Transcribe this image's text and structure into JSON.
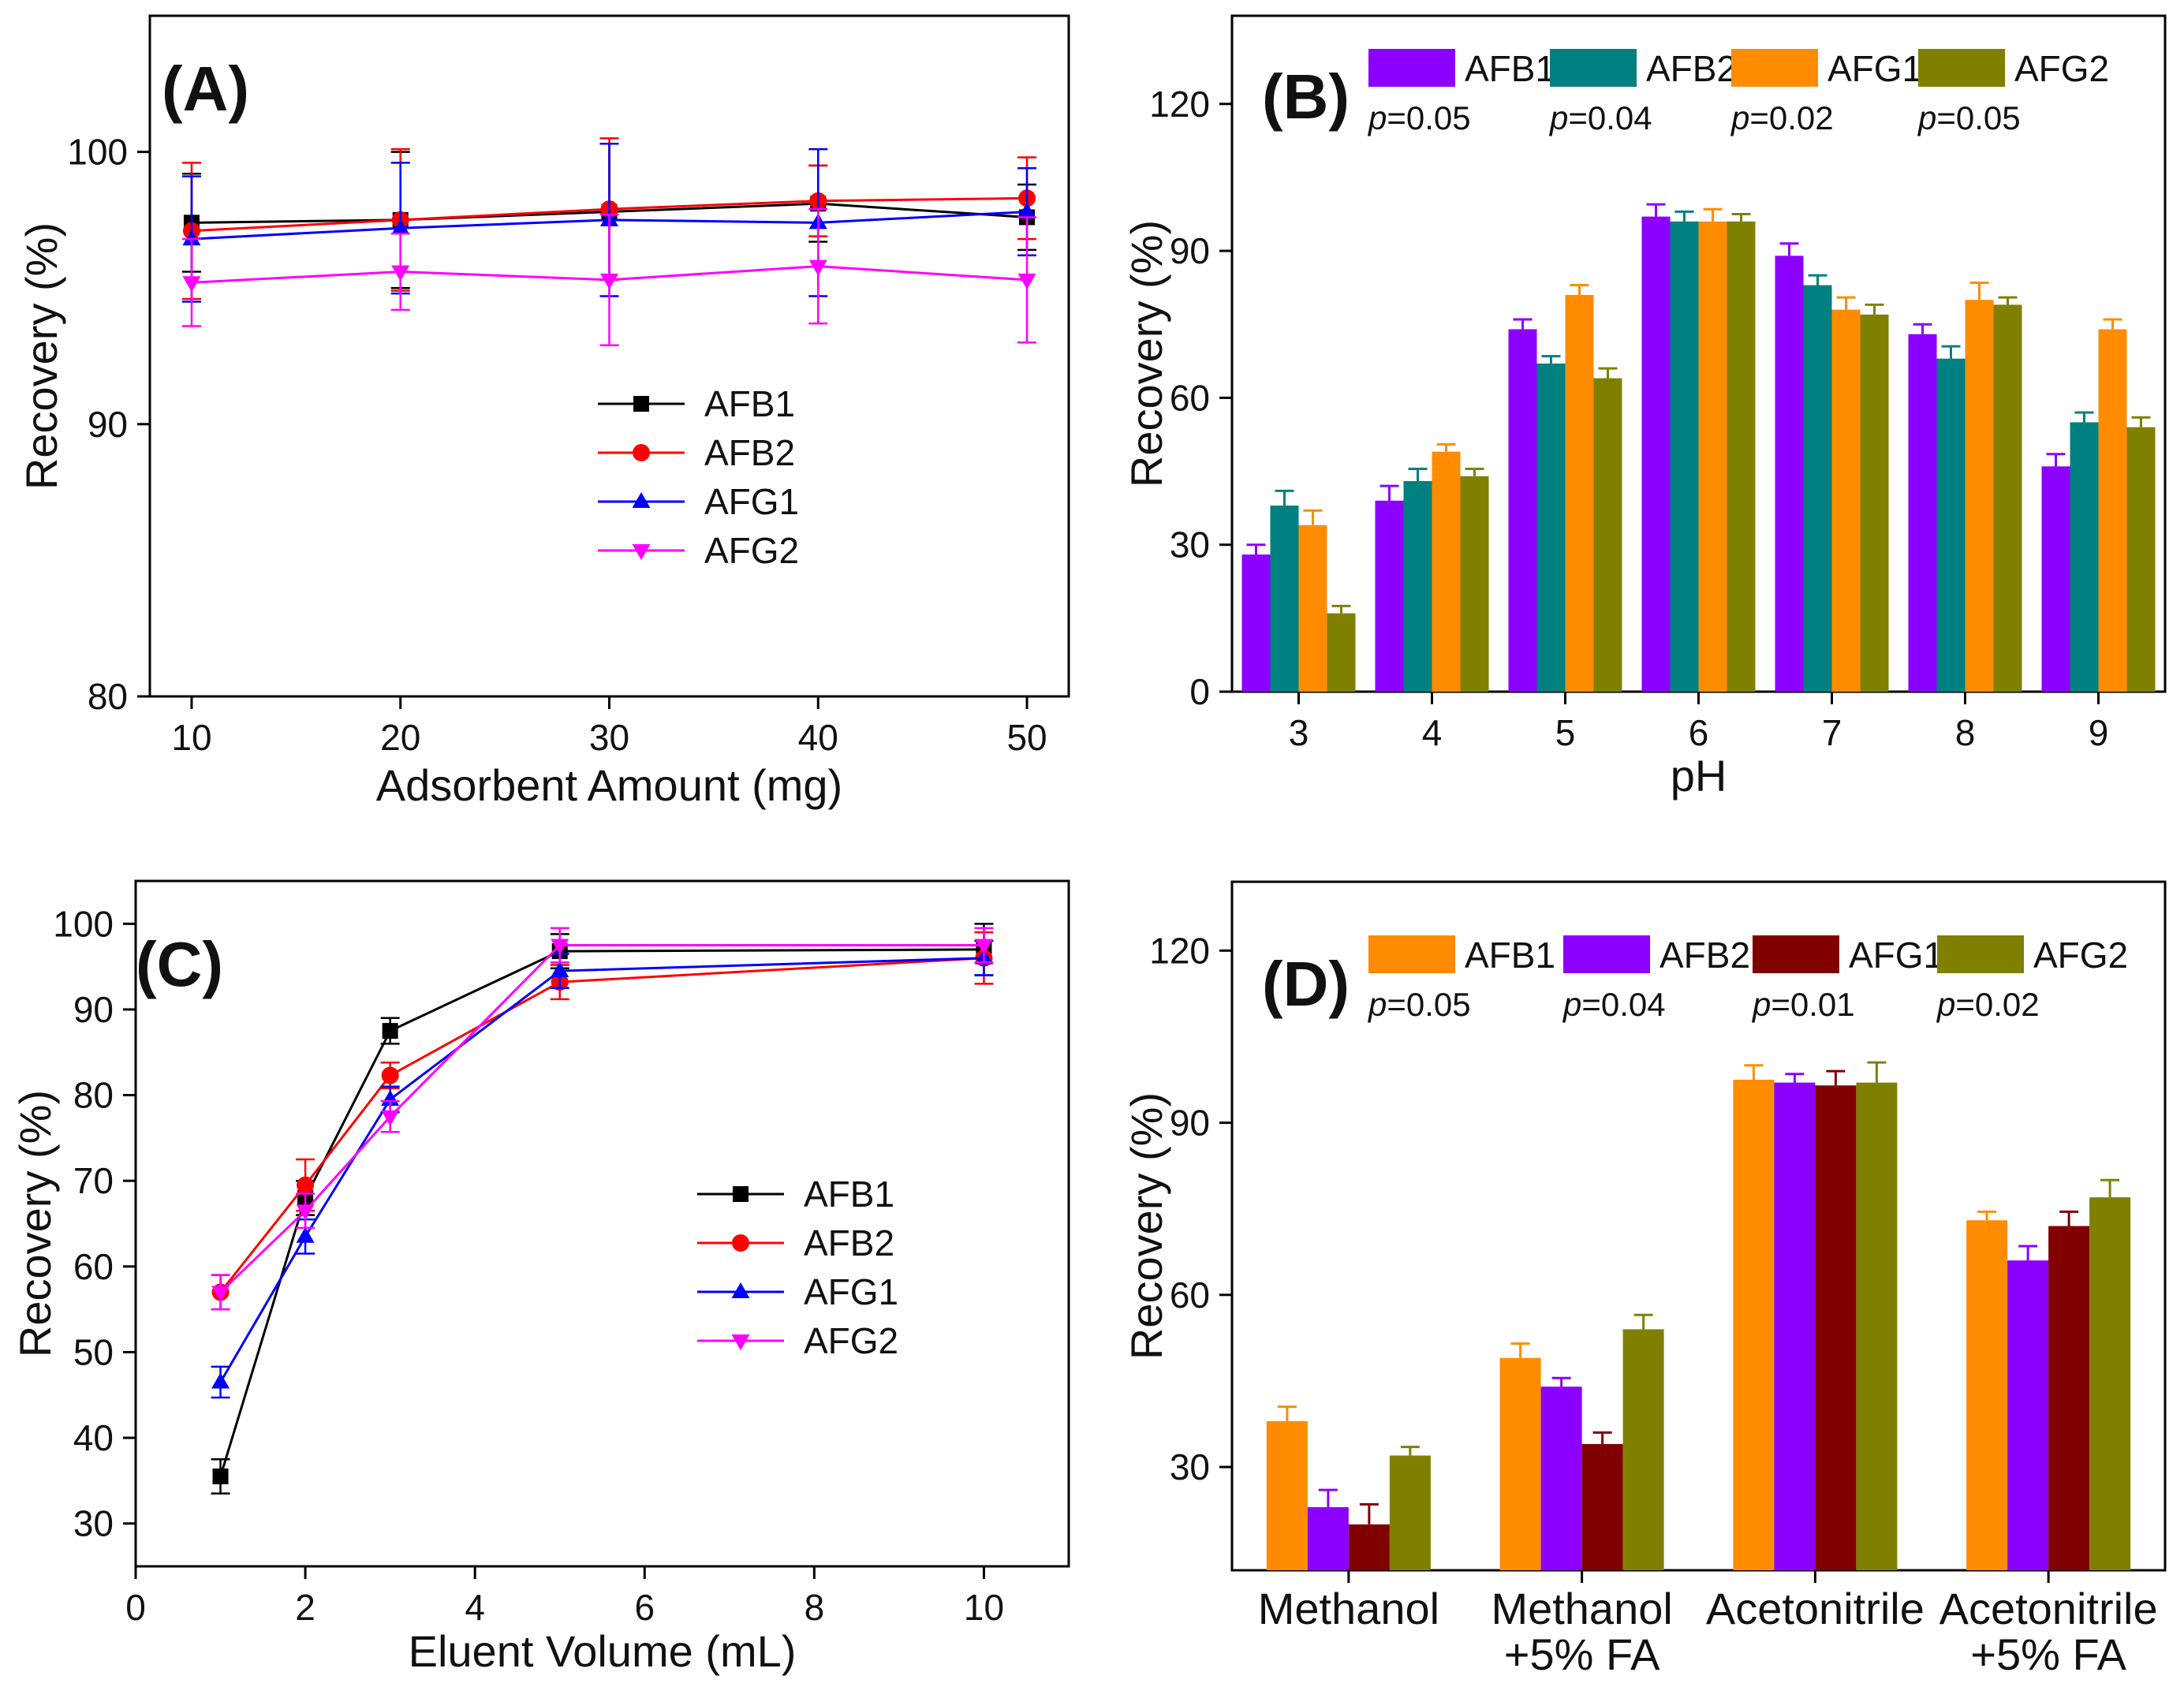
{
  "chart_data": [
    {
      "panel": "(A)",
      "type": "line",
      "xlabel": "Adsorbent Amount (mg)",
      "ylabel": "Recovery (%)",
      "xlim": [
        8,
        52
      ],
      "ylim": [
        80,
        105
      ],
      "xticks": [
        10,
        20,
        30,
        40,
        50
      ],
      "yticks": [
        80,
        90,
        100
      ],
      "x": [
        10,
        20,
        30,
        40,
        50
      ],
      "legend_position": "center",
      "series": [
        {
          "name": "AFB1",
          "color": "#000000",
          "marker": "square",
          "values": [
            97.4,
            97.5,
            97.8,
            98.1,
            97.6
          ],
          "errors": [
            1.8,
            2.5,
            2.5,
            1.4,
            1.2
          ]
        },
        {
          "name": "AFB2",
          "color": "#ff0000",
          "marker": "circle",
          "values": [
            97.1,
            97.5,
            97.9,
            98.2,
            98.3
          ],
          "errors": [
            2.5,
            2.6,
            2.6,
            1.3,
            1.5
          ]
        },
        {
          "name": "AFG1",
          "color": "#0000ff",
          "marker": "triangle-up",
          "values": [
            96.8,
            97.2,
            97.5,
            97.4,
            97.8
          ],
          "errors": [
            2.3,
            2.4,
            2.8,
            2.7,
            1.6
          ]
        },
        {
          "name": "AFG2",
          "color": "#ff00ff",
          "marker": "triangle-down",
          "values": [
            95.2,
            95.6,
            95.3,
            95.8,
            95.3
          ],
          "errors": [
            1.6,
            1.4,
            2.4,
            2.1,
            2.3
          ]
        }
      ]
    },
    {
      "panel": "(B)",
      "type": "bar",
      "xlabel": "pH",
      "ylabel": "Recovery (%)",
      "ylim": [
        0,
        138
      ],
      "yticks": [
        0,
        30,
        60,
        90,
        120
      ],
      "categories": [
        "3",
        "4",
        "5",
        "6",
        "7",
        "8",
        "9"
      ],
      "legend_position": "top",
      "series": [
        {
          "name": "AFB1",
          "color": "#8b00ff",
          "p": "=0.05",
          "values": [
            28,
            39,
            74,
            97,
            89,
            73,
            46
          ],
          "errors": [
            2,
            3,
            2,
            2.5,
            2.5,
            2,
            2.5
          ]
        },
        {
          "name": "AFB2",
          "color": "#008080",
          "p": "=0.04",
          "values": [
            38,
            43,
            67,
            96,
            83,
            68,
            55
          ],
          "errors": [
            3,
            2.5,
            1.5,
            2,
            2,
            2.5,
            2
          ]
        },
        {
          "name": "AFG1",
          "color": "#ff8c00",
          "p": "=0.02",
          "values": [
            34,
            49,
            81,
            96,
            78,
            80,
            74
          ],
          "errors": [
            3,
            1.5,
            2,
            2.5,
            2.5,
            3.5,
            2
          ]
        },
        {
          "name": "AFG2",
          "color": "#808000",
          "p": "=0.05",
          "values": [
            16,
            44,
            64,
            96,
            77,
            79,
            54
          ],
          "errors": [
            1.5,
            1.5,
            2,
            1.5,
            2,
            1.5,
            2
          ]
        }
      ]
    },
    {
      "panel": "(C)",
      "type": "line",
      "xlabel": "Eluent Volume (mL)",
      "ylabel": "Recovery (%)",
      "xlim": [
        0,
        11
      ],
      "ylim": [
        25,
        105
      ],
      "xticks": [
        0,
        2,
        4,
        6,
        8,
        10
      ],
      "yticks": [
        30,
        40,
        50,
        60,
        70,
        80,
        90,
        100
      ],
      "x": [
        1,
        2,
        3,
        5,
        10
      ],
      "legend_position": "center-right",
      "series": [
        {
          "name": "AFB1",
          "color": "#000000",
          "marker": "square",
          "values": [
            35.5,
            68,
            87.5,
            96.8,
            97
          ],
          "errors": [
            2,
            2,
            1.5,
            2,
            3
          ]
        },
        {
          "name": "AFB2",
          "color": "#ff0000",
          "marker": "circle",
          "values": [
            57,
            69.5,
            82.3,
            93.2,
            96
          ],
          "errors": [
            2,
            3,
            1.5,
            2,
            3
          ]
        },
        {
          "name": "AFG1",
          "color": "#0000ff",
          "marker": "triangle-up",
          "values": [
            46.5,
            63.5,
            79.5,
            94.5,
            96
          ],
          "errors": [
            1.8,
            2,
            1.5,
            2,
            2
          ]
        },
        {
          "name": "AFG2",
          "color": "#ff00ff",
          "marker": "triangle-down",
          "values": [
            57,
            66.5,
            77.5,
            97.5,
            97.5
          ],
          "errors": [
            2,
            2,
            1.8,
            2,
            2
          ]
        }
      ]
    },
    {
      "panel": "(D)",
      "type": "bar",
      "xlabel": "",
      "ylabel": "Recovery (%)",
      "ylim": [
        12,
        132
      ],
      "yticks": [
        30,
        60,
        90,
        120
      ],
      "categories": [
        [
          "Methanol"
        ],
        [
          "Methanol",
          "+5% FA"
        ],
        [
          "Acetonitrile"
        ],
        [
          "Acetonitrile",
          "+5% FA"
        ]
      ],
      "legend_position": "top",
      "series": [
        {
          "name": "AFB1",
          "color": "#ff8c00",
          "p": "=0.05",
          "values": [
            38,
            49,
            97.5,
            73
          ],
          "errors": [
            2.5,
            2.5,
            2.5,
            1.5
          ]
        },
        {
          "name": "AFB2",
          "color": "#8b00ff",
          "p": "=0.04",
          "values": [
            23,
            44,
            97,
            66
          ],
          "errors": [
            3,
            1.5,
            1.5,
            2.5
          ]
        },
        {
          "name": "AFG1",
          "color": "#800000",
          "p": "=0.01",
          "values": [
            20,
            34,
            96.5,
            72
          ],
          "errors": [
            3.5,
            2,
            2.5,
            2.5
          ]
        },
        {
          "name": "AFG2",
          "color": "#808000",
          "p": "=0.02",
          "values": [
            32,
            54,
            97,
            77
          ],
          "errors": [
            1.5,
            2.5,
            3.5,
            3
          ]
        }
      ]
    }
  ]
}
